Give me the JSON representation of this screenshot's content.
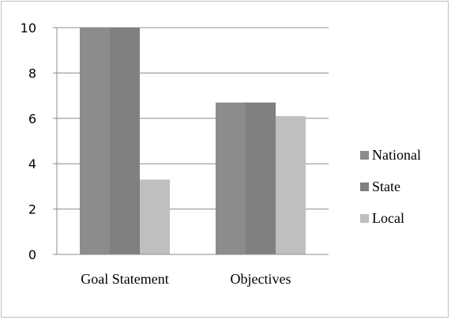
{
  "chart_data": {
    "type": "bar",
    "categories": [
      "Goal Statement",
      "Objectives"
    ],
    "series": [
      {
        "name": "National",
        "values": [
          10,
          6.7
        ],
        "color": "#8c8c8c"
      },
      {
        "name": "State",
        "values": [
          10,
          6.7
        ],
        "color": "#808080"
      },
      {
        "name": "Local",
        "values": [
          3.3,
          6.1
        ],
        "color": "#bfbfbf"
      }
    ],
    "yticks": [
      "0",
      "2",
      "4",
      "6",
      "8",
      "10"
    ],
    "ylim": [
      0,
      10
    ],
    "grid": true,
    "legend_position": "right",
    "title": "",
    "xlabel": "",
    "ylabel": ""
  }
}
